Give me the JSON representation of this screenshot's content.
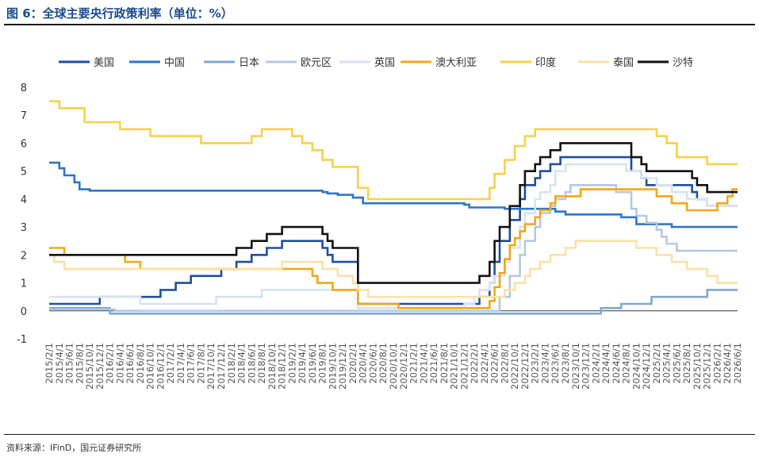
{
  "title": "图 6：全球主要央行政策利率（单位：%）",
  "source": "资料来源：IFinD，国元证券研究所",
  "chart_data": {
    "type": "line",
    "ylim": [
      -1,
      8
    ],
    "yticks": [
      -1,
      0,
      1,
      2,
      3,
      4,
      5,
      6,
      7,
      8
    ],
    "xlim": [
      "2015/2/1",
      "2026/6/1"
    ],
    "xticks": [
      "2015/2/1",
      "2015/4/1",
      "2015/6/1",
      "2015/8/1",
      "2015/10/1",
      "2015/12/1",
      "2016/2/1",
      "2016/4/1",
      "2016/6/1",
      "2016/8/1",
      "2016/10/1",
      "2016/12/1",
      "2017/2/1",
      "2017/4/1",
      "2017/6/1",
      "2017/8/1",
      "2017/10/1",
      "2017/12/1",
      "2018/2/1",
      "2018/4/1",
      "2018/6/1",
      "2018/8/1",
      "2018/10/1",
      "2018/12/1",
      "2019/2/1",
      "2019/4/1",
      "2019/6/1",
      "2019/8/1",
      "2019/10/1",
      "2019/12/1",
      "2020/2/1",
      "2020/4/1",
      "2020/6/1",
      "2020/8/1",
      "2020/10/1",
      "2020/12/1",
      "2021/2/1",
      "2021/4/1",
      "2021/6/1",
      "2021/8/1",
      "2021/10/1",
      "2021/12/1",
      "2022/2/1",
      "2022/4/1",
      "2022/6/1",
      "2022/8/1",
      "2022/10/1",
      "2022/12/1",
      "2023/2/1",
      "2023/4/1",
      "2023/6/1",
      "2023/8/1",
      "2023/10/1",
      "2023/12/1",
      "2024/2/1",
      "2024/4/1",
      "2024/6/1",
      "2024/8/1",
      "2024/10/1",
      "2024/12/1",
      "2025/2/1",
      "2025/4/1",
      "2025/6/1",
      "2025/8/1",
      "2025/10/1",
      "2025/12/1",
      "2026/2/1",
      "2026/4/1",
      "2026/6/1"
    ],
    "grid": false,
    "legend": "top",
    "series": [
      {
        "name": "美国",
        "color": "#1f4e9c",
        "points": [
          [
            "2015/2/1",
            0.25
          ],
          [
            "2015/12/1",
            0.5
          ],
          [
            "2016/12/1",
            0.75
          ],
          [
            "2017/3/1",
            1.0
          ],
          [
            "2017/6/1",
            1.25
          ],
          [
            "2017/12/1",
            1.5
          ],
          [
            "2018/3/1",
            1.75
          ],
          [
            "2018/6/1",
            2.0
          ],
          [
            "2018/9/1",
            2.25
          ],
          [
            "2018/12/1",
            2.5
          ],
          [
            "2019/8/1",
            2.25
          ],
          [
            "2019/9/1",
            2.0
          ],
          [
            "2019/10/1",
            1.75
          ],
          [
            "2020/3/1",
            0.25
          ],
          [
            "2022/3/1",
            0.5
          ],
          [
            "2022/5/1",
            1.0
          ],
          [
            "2022/6/1",
            1.75
          ],
          [
            "2022/7/1",
            2.5
          ],
          [
            "2022/9/1",
            3.25
          ],
          [
            "2022/11/1",
            4.0
          ],
          [
            "2022/12/1",
            4.5
          ],
          [
            "2023/2/1",
            4.75
          ],
          [
            "2023/3/1",
            5.0
          ],
          [
            "2023/5/1",
            5.25
          ],
          [
            "2023/7/1",
            5.5
          ],
          [
            "2024/9/1",
            5.0
          ],
          [
            "2024/11/1",
            4.75
          ],
          [
            "2024/12/1",
            4.5
          ],
          [
            "2025/9/1",
            4.25
          ],
          [
            "2025/10/1",
            4.0
          ],
          [
            "2025/12/1",
            3.75
          ],
          [
            "2026/6/1",
            3.75
          ]
        ]
      },
      {
        "name": "中国",
        "color": "#2e75c6",
        "points": [
          [
            "2015/2/1",
            5.3
          ],
          [
            "2015/3/1",
            5.3
          ],
          [
            "2015/4/1",
            5.1
          ],
          [
            "2015/5/1",
            4.85
          ],
          [
            "2015/7/1",
            4.6
          ],
          [
            "2015/8/1",
            4.35
          ],
          [
            "2015/10/1",
            4.3
          ],
          [
            "2019/6/1",
            4.3
          ],
          [
            "2019/8/1",
            4.25
          ],
          [
            "2019/9/1",
            4.2
          ],
          [
            "2019/11/1",
            4.15
          ],
          [
            "2020/2/1",
            4.05
          ],
          [
            "2020/4/1",
            3.85
          ],
          [
            "2021/12/1",
            3.8
          ],
          [
            "2022/1/1",
            3.7
          ],
          [
            "2022/8/1",
            3.65
          ],
          [
            "2023/6/1",
            3.55
          ],
          [
            "2023/8/1",
            3.45
          ],
          [
            "2024/2/1",
            3.45
          ],
          [
            "2024/7/1",
            3.35
          ],
          [
            "2024/10/1",
            3.1
          ],
          [
            "2025/5/1",
            3.0
          ],
          [
            "2026/6/1",
            3.0
          ]
        ]
      },
      {
        "name": "日本",
        "color": "#7fa7d1",
        "points": [
          [
            "2015/2/1",
            0.1
          ],
          [
            "2016/2/1",
            -0.1
          ],
          [
            "2024/3/1",
            0.1
          ],
          [
            "2024/7/1",
            0.25
          ],
          [
            "2025/1/1",
            0.5
          ],
          [
            "2025/12/1",
            0.75
          ],
          [
            "2026/6/1",
            0.75
          ]
        ]
      },
      {
        "name": "欧元区",
        "color": "#b4c8e2",
        "points": [
          [
            "2015/2/1",
            0.05
          ],
          [
            "2016/3/1",
            0.0
          ],
          [
            "2022/7/1",
            0.5
          ],
          [
            "2022/9/1",
            1.25
          ],
          [
            "2022/11/1",
            2.0
          ],
          [
            "2022/12/1",
            2.5
          ],
          [
            "2023/2/1",
            3.0
          ],
          [
            "2023/3/1",
            3.5
          ],
          [
            "2023/5/1",
            3.75
          ],
          [
            "2023/6/1",
            4.0
          ],
          [
            "2023/8/1",
            4.25
          ],
          [
            "2023/9/1",
            4.5
          ],
          [
            "2024/6/1",
            4.25
          ],
          [
            "2024/9/1",
            3.65
          ],
          [
            "2024/10/1",
            3.4
          ],
          [
            "2024/12/1",
            3.15
          ],
          [
            "2025/2/1",
            2.9
          ],
          [
            "2025/3/1",
            2.65
          ],
          [
            "2025/4/1",
            2.4
          ],
          [
            "2025/6/1",
            2.15
          ],
          [
            "2026/6/1",
            2.15
          ]
        ]
      },
      {
        "name": "英国",
        "color": "#d5e3f2",
        "points": [
          [
            "2015/2/1",
            0.5
          ],
          [
            "2016/8/1",
            0.25
          ],
          [
            "2017/11/1",
            0.5
          ],
          [
            "2018/8/1",
            0.75
          ],
          [
            "2020/3/1",
            0.1
          ],
          [
            "2021/12/1",
            0.25
          ],
          [
            "2022/2/1",
            0.5
          ],
          [
            "2022/3/1",
            0.75
          ],
          [
            "2022/5/1",
            1.0
          ],
          [
            "2022/6/1",
            1.25
          ],
          [
            "2022/8/1",
            1.75
          ],
          [
            "2022/9/1",
            2.25
          ],
          [
            "2022/11/1",
            3.0
          ],
          [
            "2022/12/1",
            3.5
          ],
          [
            "2023/2/1",
            4.0
          ],
          [
            "2023/3/1",
            4.25
          ],
          [
            "2023/5/1",
            4.5
          ],
          [
            "2023/6/1",
            5.0
          ],
          [
            "2023/8/1",
            5.25
          ],
          [
            "2024/8/1",
            5.0
          ],
          [
            "2024/11/1",
            4.75
          ],
          [
            "2025/2/1",
            4.5
          ],
          [
            "2025/5/1",
            4.25
          ],
          [
            "2025/8/1",
            4.0
          ],
          [
            "2025/12/1",
            3.75
          ],
          [
            "2026/6/1",
            3.75
          ]
        ]
      },
      {
        "name": "澳大利亚",
        "color": "#f0a818",
        "points": [
          [
            "2015/2/1",
            2.25
          ],
          [
            "2015/5/1",
            2.0
          ],
          [
            "2016/5/1",
            1.75
          ],
          [
            "2016/8/1",
            1.5
          ],
          [
            "2019/6/1",
            1.25
          ],
          [
            "2019/7/1",
            1.0
          ],
          [
            "2019/10/1",
            0.75
          ],
          [
            "2020/3/1",
            0.25
          ],
          [
            "2020/11/1",
            0.1
          ],
          [
            "2022/5/1",
            0.35
          ],
          [
            "2022/6/1",
            0.85
          ],
          [
            "2022/7/1",
            1.35
          ],
          [
            "2022/8/1",
            1.85
          ],
          [
            "2022/9/1",
            2.35
          ],
          [
            "2022/10/1",
            2.6
          ],
          [
            "2022/11/1",
            2.85
          ],
          [
            "2022/12/1",
            3.1
          ],
          [
            "2023/2/1",
            3.35
          ],
          [
            "2023/3/1",
            3.6
          ],
          [
            "2023/5/1",
            3.85
          ],
          [
            "2023/6/1",
            4.1
          ],
          [
            "2023/11/1",
            4.35
          ],
          [
            "2025/2/1",
            4.1
          ],
          [
            "2025/5/1",
            3.85
          ],
          [
            "2025/8/1",
            3.6
          ],
          [
            "2026/2/1",
            3.85
          ],
          [
            "2026/4/1",
            4.1
          ],
          [
            "2026/5/1",
            4.35
          ],
          [
            "2026/6/1",
            4.35
          ]
        ]
      },
      {
        "name": "印度",
        "color": "#f7d04a",
        "points": [
          [
            "2015/2/1",
            7.5
          ],
          [
            "2015/3/1",
            7.5
          ],
          [
            "2015/4/1",
            7.25
          ],
          [
            "2015/6/1",
            7.25
          ],
          [
            "2015/7/1",
            7.25
          ],
          [
            "2015/9/1",
            6.75
          ],
          [
            "2016/4/1",
            6.5
          ],
          [
            "2016/10/1",
            6.25
          ],
          [
            "2017/8/1",
            6.0
          ],
          [
            "2018/6/1",
            6.25
          ],
          [
            "2018/8/1",
            6.5
          ],
          [
            "2019/2/1",
            6.25
          ],
          [
            "2019/4/1",
            6.0
          ],
          [
            "2019/6/1",
            5.75
          ],
          [
            "2019/8/1",
            5.4
          ],
          [
            "2019/10/1",
            5.15
          ],
          [
            "2020/3/1",
            4.4
          ],
          [
            "2020/5/1",
            4.0
          ],
          [
            "2022/5/1",
            4.4
          ],
          [
            "2022/6/1",
            4.9
          ],
          [
            "2022/8/1",
            5.4
          ],
          [
            "2022/10/1",
            5.9
          ],
          [
            "2022/12/1",
            6.25
          ],
          [
            "2023/2/1",
            6.5
          ],
          [
            "2025/2/1",
            6.25
          ],
          [
            "2025/4/1",
            6.0
          ],
          [
            "2025/6/1",
            5.5
          ],
          [
            "2025/12/1",
            5.25
          ],
          [
            "2026/6/1",
            5.25
          ]
        ]
      },
      {
        "name": "泰国",
        "color": "#fbe0a6",
        "points": [
          [
            "2015/2/1",
            2.0
          ],
          [
            "2015/3/1",
            1.75
          ],
          [
            "2015/5/1",
            1.5
          ],
          [
            "2018/12/1",
            1.75
          ],
          [
            "2019/8/1",
            1.5
          ],
          [
            "2019/11/1",
            1.25
          ],
          [
            "2020/2/1",
            1.0
          ],
          [
            "2020/3/1",
            0.75
          ],
          [
            "2020/5/1",
            0.5
          ],
          [
            "2022/8/1",
            0.75
          ],
          [
            "2022/10/1",
            1.0
          ],
          [
            "2022/12/1",
            1.25
          ],
          [
            "2023/1/1",
            1.5
          ],
          [
            "2023/3/1",
            1.75
          ],
          [
            "2023/5/1",
            2.0
          ],
          [
            "2023/8/1",
            2.25
          ],
          [
            "2023/10/1",
            2.5
          ],
          [
            "2024/10/1",
            2.25
          ],
          [
            "2025/2/1",
            2.0
          ],
          [
            "2025/5/1",
            1.75
          ],
          [
            "2025/8/1",
            1.5
          ],
          [
            "2025/12/1",
            1.25
          ],
          [
            "2026/2/1",
            1.0
          ],
          [
            "2026/6/1",
            1.0
          ]
        ]
      },
      {
        "name": "沙特",
        "color": "#111111",
        "points": [
          [
            "2015/2/1",
            2.0
          ],
          [
            "2017/3/1",
            2.0
          ],
          [
            "2017/6/1",
            2.0
          ],
          [
            "2018/1/1",
            2.0
          ],
          [
            "2018/3/1",
            2.25
          ],
          [
            "2018/6/1",
            2.5
          ],
          [
            "2018/9/1",
            2.75
          ],
          [
            "2018/12/1",
            3.0
          ],
          [
            "2019/8/1",
            2.75
          ],
          [
            "2019/9/1",
            2.5
          ],
          [
            "2019/10/1",
            2.25
          ],
          [
            "2020/3/1",
            1.0
          ],
          [
            "2022/3/1",
            1.25
          ],
          [
            "2022/5/1",
            1.75
          ],
          [
            "2022/6/1",
            2.5
          ],
          [
            "2022/7/1",
            3.0
          ],
          [
            "2022/9/1",
            3.75
          ],
          [
            "2022/11/1",
            4.5
          ],
          [
            "2022/12/1",
            5.0
          ],
          [
            "2023/2/1",
            5.25
          ],
          [
            "2023/3/1",
            5.5
          ],
          [
            "2023/5/1",
            5.75
          ],
          [
            "2023/7/1",
            6.0
          ],
          [
            "2024/9/1",
            5.5
          ],
          [
            "2024/11/1",
            5.25
          ],
          [
            "2024/12/1",
            5.0
          ],
          [
            "2025/9/1",
            4.75
          ],
          [
            "2025/10/1",
            4.5
          ],
          [
            "2025/12/1",
            4.25
          ],
          [
            "2026/6/1",
            4.25
          ]
        ]
      }
    ]
  }
}
